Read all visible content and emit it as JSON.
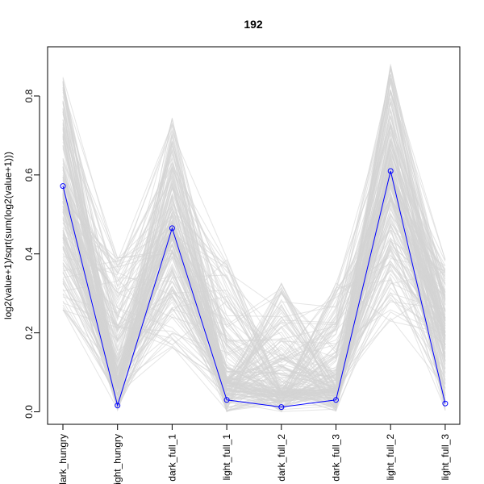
{
  "chart_data": {
    "type": "line",
    "title": "192",
    "xlabel": "",
    "ylabel": "log2(value+1)/sqrt(sum(log2(value+1)))",
    "categories": [
      "dark_hungry",
      "light_hungry",
      "dark_full_1",
      "light_full_1",
      "dark_full_2",
      "dark_full_3",
      "light_full_2",
      "light_full_3"
    ],
    "ylim": [
      -0.02,
      0.9
    ],
    "yticks": [
      0.0,
      0.2,
      0.4,
      0.6,
      0.8
    ],
    "ytick_labels": [
      "0.0",
      "0.2",
      "0.4",
      "0.6",
      "0.8"
    ],
    "grid": false,
    "legend": "none",
    "colors": {
      "background_lines": "#d3d3d3",
      "highlight": "#0000ff"
    },
    "background_profiles": {
      "description_count": 192,
      "ranges": [
        [
          0.25,
          0.85
        ],
        [
          0.0,
          0.39
        ],
        [
          0.16,
          0.76
        ],
        [
          0.0,
          0.4
        ],
        [
          0.0,
          0.33
        ],
        [
          0.0,
          0.33
        ],
        [
          0.22,
          0.89
        ],
        [
          0.0,
          0.39
        ]
      ],
      "typical": [
        0.55,
        0.08,
        0.45,
        0.08,
        0.05,
        0.06,
        0.6,
        0.2
      ]
    },
    "series": [
      {
        "values": [
          0.572,
          0.016,
          0.465,
          0.03,
          0.012,
          0.03,
          0.61,
          0.021
        ]
      }
    ]
  }
}
